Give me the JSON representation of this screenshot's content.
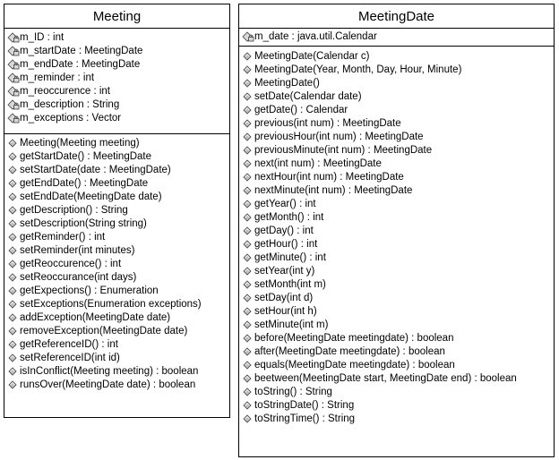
{
  "classes": {
    "meeting": {
      "name": "Meeting",
      "attributes": [
        {
          "text": "m_ID : int",
          "icon": "private-field-icon"
        },
        {
          "text": "m_startDate : MeetingDate",
          "icon": "private-field-icon"
        },
        {
          "text": "m_endDate : MeetingDate",
          "icon": "private-field-icon"
        },
        {
          "text": "m_reminder : int",
          "icon": "private-field-icon"
        },
        {
          "text": "m_reoccurence : int",
          "icon": "private-field-icon"
        },
        {
          "text": "m_description : String",
          "icon": "private-field-icon"
        },
        {
          "text": "m_exceptions : Vector",
          "icon": "private-field-icon"
        }
      ],
      "operations": [
        {
          "text": "Meeting(Meeting meeting)",
          "icon": "public-method-icon"
        },
        {
          "text": "getStartDate() : MeetingDate",
          "icon": "public-method-icon"
        },
        {
          "text": "setStartDate(date :  MeetingDate)",
          "icon": "public-method-icon"
        },
        {
          "text": "getEndDate() : MeetingDate",
          "icon": "public-method-icon"
        },
        {
          "text": "setEndDate(MeetingDate date)",
          "icon": "public-method-icon"
        },
        {
          "text": "getDescription() : String",
          "icon": "public-method-icon"
        },
        {
          "text": "setDescription(String string)",
          "icon": "public-method-icon"
        },
        {
          "text": "getReminder() : int",
          "icon": "public-method-icon"
        },
        {
          "text": "setReminder(int minutes)",
          "icon": "public-method-icon"
        },
        {
          "text": "getReoccurence() : int",
          "icon": "public-method-icon"
        },
        {
          "text": "setReoccurance(int days)",
          "icon": "public-method-icon"
        },
        {
          "text": "getExpections() : Enumeration",
          "icon": "public-method-icon"
        },
        {
          "text": "setExceptions(Enumeration exceptions)",
          "icon": "public-method-icon"
        },
        {
          "text": "addException(MeetingDate date)",
          "icon": "public-method-icon"
        },
        {
          "text": "removeException(MeetingDate date)",
          "icon": "public-method-icon"
        },
        {
          "text": "getReferenceID() : int",
          "icon": "public-method-icon"
        },
        {
          "text": "setReferenceID(int id)",
          "icon": "public-method-icon"
        },
        {
          "text": "isInConflict(Meeting meeting) : boolean",
          "icon": "public-method-icon"
        },
        {
          "text": "runsOver(MeetingDate date) : boolean",
          "icon": "public-method-icon"
        }
      ]
    },
    "meetingdate": {
      "name": "MeetingDate",
      "attributes": [
        {
          "text": "m_date : java.util.Calendar",
          "icon": "private-field-icon"
        }
      ],
      "operations": [
        {
          "text": "MeetingDate(Calendar c)",
          "icon": "public-method-icon"
        },
        {
          "text": "MeetingDate(Year, Month, Day, Hour, Minute)",
          "icon": "public-method-icon"
        },
        {
          "text": "MeetingDate()",
          "icon": "public-method-icon"
        },
        {
          "text": "setDate(Calendar date)",
          "icon": "public-method-icon"
        },
        {
          "text": "getDate() : Calendar",
          "icon": "public-method-icon"
        },
        {
          "text": "previous(int num) : MeetingDate",
          "icon": "public-method-icon"
        },
        {
          "text": "previousHour(int num) : MeetingDate",
          "icon": "public-method-icon"
        },
        {
          "text": "previousMinute(int num) : MeetingDate",
          "icon": "public-method-icon"
        },
        {
          "text": "next(int num) : MeetingDate",
          "icon": "public-method-icon"
        },
        {
          "text": "nextHour(int num) : MeetingDate",
          "icon": "public-method-icon"
        },
        {
          "text": "nextMinute(int num) : MeetingDate",
          "icon": "public-method-icon"
        },
        {
          "text": "getYear() : int",
          "icon": "public-method-icon"
        },
        {
          "text": "getMonth() : int",
          "icon": "public-method-icon"
        },
        {
          "text": "getDay() : int",
          "icon": "public-method-icon"
        },
        {
          "text": "getHour() : int",
          "icon": "public-method-icon"
        },
        {
          "text": "getMinute() : int",
          "icon": "public-method-icon"
        },
        {
          "text": "setYear(int y)",
          "icon": "public-method-icon"
        },
        {
          "text": "setMonth(int m)",
          "icon": "public-method-icon"
        },
        {
          "text": "setDay(int d)",
          "icon": "public-method-icon"
        },
        {
          "text": "setHour(int h)",
          "icon": "public-method-icon"
        },
        {
          "text": "setMinute(int m)",
          "icon": "public-method-icon"
        },
        {
          "text": "before(MeetingDate meetingdate) : boolean",
          "icon": "public-method-icon"
        },
        {
          "text": "after(MeetingDate meetingdate) : boolean",
          "icon": "public-method-icon"
        },
        {
          "text": "equals(MeetingDate meetingdate) : boolean",
          "icon": "public-method-icon"
        },
        {
          "text": "beetween(MeetingDate start, MeetingDate end) : boolean",
          "icon": "public-method-icon"
        },
        {
          "text": "toString() : String",
          "icon": "public-method-icon"
        },
        {
          "text": "toStringDate() : String",
          "icon": "public-method-icon"
        },
        {
          "text": "toStringTime() : String",
          "icon": "public-method-icon"
        }
      ]
    }
  }
}
